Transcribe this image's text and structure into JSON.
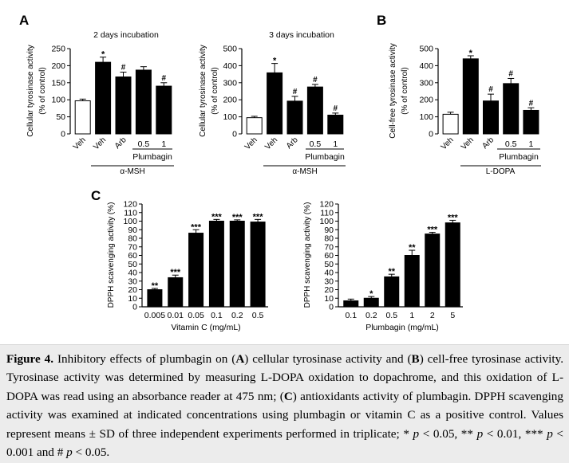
{
  "panels": {
    "a": "A",
    "b": "B",
    "c": "C"
  },
  "chart_data": [
    {
      "type": "bar",
      "panel": "A",
      "title": "2 days incubation",
      "ylabel": "Cellular tyrosinase activity",
      "ylabel2": "(% of control)",
      "ylim": [
        0,
        250
      ],
      "yticks": [
        0,
        50,
        100,
        150,
        200,
        250
      ],
      "categories": [
        "Veh",
        "Veh",
        "Arb",
        "0.5",
        "1"
      ],
      "values": [
        97,
        210,
        167,
        187,
        140
      ],
      "errors": [
        5,
        15,
        14,
        10,
        10
      ],
      "fills": [
        "#ffffff",
        "#000000",
        "#000000",
        "#000000",
        "#000000"
      ],
      "marks": [
        "",
        "*",
        "#",
        "",
        "#"
      ],
      "group_label": "Plumbagin",
      "treatment_label": "α-MSH"
    },
    {
      "type": "bar",
      "panel": "A",
      "title": "3 days incubation",
      "ylabel": "Cellular tyrosinase activity",
      "ylabel2": "(% of control)",
      "ylim": [
        0,
        500
      ],
      "yticks": [
        0,
        100,
        200,
        300,
        400,
        500
      ],
      "categories": [
        "Veh",
        "Veh",
        "Arb",
        "0.5",
        "1"
      ],
      "values": [
        95,
        358,
        192,
        275,
        110
      ],
      "errors": [
        8,
        55,
        28,
        15,
        12
      ],
      "fills": [
        "#ffffff",
        "#000000",
        "#000000",
        "#000000",
        "#000000"
      ],
      "marks": [
        "",
        "*",
        "#",
        "#",
        "#"
      ],
      "group_label": "Plumbagin",
      "treatment_label": "α-MSH"
    },
    {
      "type": "bar",
      "panel": "B",
      "title": "",
      "ylabel": "Cell-free tyrosinase activity",
      "ylabel2": "(% of control)",
      "ylim": [
        0,
        500
      ],
      "yticks": [
        0,
        100,
        200,
        300,
        400,
        500
      ],
      "categories": [
        "Veh",
        "Veh",
        "Arb",
        "0.5",
        "1"
      ],
      "values": [
        115,
        440,
        193,
        295,
        138
      ],
      "errors": [
        12,
        18,
        40,
        30,
        15
      ],
      "fills": [
        "#ffffff",
        "#000000",
        "#000000",
        "#000000",
        "#000000"
      ],
      "marks": [
        "",
        "*",
        "#",
        "#",
        "#"
      ],
      "group_label": "Plumbagin",
      "treatment_label": "L-DOPA"
    },
    {
      "type": "bar",
      "panel": "C",
      "title": "",
      "ylabel": "DPPH scavenging activity (%)",
      "ylim": [
        0,
        120
      ],
      "yticks": [
        0,
        10,
        20,
        30,
        40,
        50,
        60,
        70,
        80,
        90,
        100,
        110,
        120
      ],
      "categories": [
        "0.005",
        "0.01",
        "0.05",
        "0.1",
        "0.2",
        "0.5"
      ],
      "values": [
        20,
        34,
        86,
        100,
        100,
        99
      ],
      "errors": [
        1.5,
        3,
        4,
        2,
        1.5,
        3
      ],
      "marks": [
        "**",
        "***",
        "***",
        "***",
        "***",
        "***"
      ],
      "xlabel": "Vitamin C (mg/mL)"
    },
    {
      "type": "bar",
      "panel": "C",
      "title": "",
      "ylabel": "DPPH scavenging activity (%)",
      "ylim": [
        0,
        120
      ],
      "yticks": [
        0,
        10,
        20,
        30,
        40,
        50,
        60,
        70,
        80,
        90,
        100,
        110,
        120
      ],
      "categories": [
        "0.1",
        "0.2",
        "0.5",
        "1",
        "2",
        "5"
      ],
      "values": [
        7,
        10,
        35,
        60,
        85,
        98
      ],
      "errors": [
        2,
        2,
        3,
        6,
        2,
        3
      ],
      "marks": [
        "",
        "*",
        "**",
        "**",
        "***",
        "***"
      ],
      "xlabel": "Plumbagin (mg/mL)"
    }
  ],
  "caption": {
    "lead": "Figure 4.",
    "s1": " Inhibitory effects of plumbagin on (",
    "ra": "A",
    "s2": ") cellular tyrosinase activity and (",
    "rb": "B",
    "s3": ") cell-free tyrosinase activity. Tyrosinase activity was determined by measuring ",
    "dopa1": "L-DOPA",
    "s4": " oxidation to dopachrome, and this oxidation of ",
    "dopa2": "L-DOPA",
    "s5": " was read using an absorbance reader at 475 nm; (",
    "rc": "C",
    "s6": ") antioxidants activity of plumbagin. DPPH scavenging activity was examined at indicated concentrations using plumbagin or vitamin C as a positive control. Values represent means ± SD of three independent experiments performed in triplicate; * ",
    "p1": "p",
    "s7": " < 0.05, ** ",
    "p2": "p",
    "s8": " < 0.01, *** ",
    "p3": "p",
    "s9": " < 0.001 and # ",
    "p4": "p",
    "s10": " < 0.05."
  }
}
